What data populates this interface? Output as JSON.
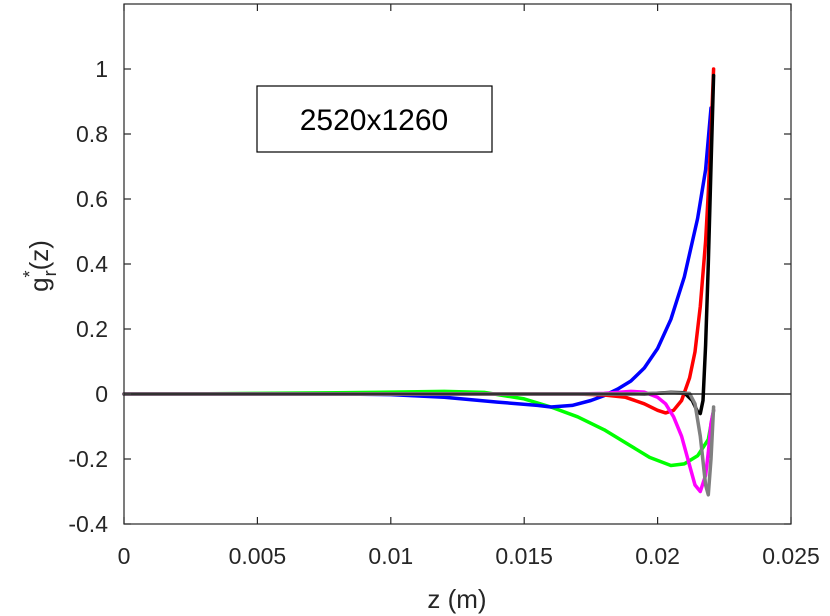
{
  "chart_data": {
    "type": "line",
    "xlabel": "z   (m)",
    "ylabel_main": "g",
    "ylabel_sup": "*",
    "ylabel_sub": "r",
    "ylabel_tail": "(z)",
    "annotation": "2520x1260",
    "xlim": [
      0,
      0.025
    ],
    "ylim": [
      -0.4,
      1.2
    ],
    "xticks": [
      0,
      0.005,
      0.01,
      0.015,
      0.02,
      0.025
    ],
    "xtick_labels": [
      "0",
      "0.005",
      "0.01",
      "0.015",
      "0.02",
      "0.025"
    ],
    "yticks": [
      -0.4,
      -0.2,
      0,
      0.2,
      0.4,
      0.6,
      0.8,
      1
    ],
    "ytick_labels": [
      "-0.4",
      "-0.2",
      "0",
      "0.2",
      "0.4",
      "0.6",
      "0.8",
      "1"
    ],
    "grid": false,
    "legend": "none",
    "reference_line_y": 0,
    "series": [
      {
        "color": "#00ff00",
        "points": [
          [
            0,
            0
          ],
          [
            0.002,
            0
          ],
          [
            0.005,
            0.002
          ],
          [
            0.008,
            0.004
          ],
          [
            0.01,
            0.006
          ],
          [
            0.012,
            0.008
          ],
          [
            0.0135,
            0.005
          ],
          [
            0.015,
            -0.015
          ],
          [
            0.016,
            -0.04
          ],
          [
            0.017,
            -0.07
          ],
          [
            0.018,
            -0.11
          ],
          [
            0.019,
            -0.16
          ],
          [
            0.0197,
            -0.195
          ],
          [
            0.0205,
            -0.22
          ],
          [
            0.021,
            -0.215
          ],
          [
            0.0215,
            -0.19
          ],
          [
            0.0219,
            -0.14
          ],
          [
            0.0221,
            -0.05
          ]
        ]
      },
      {
        "color": "#0000ff",
        "points": [
          [
            0,
            0
          ],
          [
            0.008,
            0
          ],
          [
            0.01,
            -0.002
          ],
          [
            0.012,
            -0.01
          ],
          [
            0.014,
            -0.025
          ],
          [
            0.0155,
            -0.035
          ],
          [
            0.016,
            -0.04
          ],
          [
            0.0168,
            -0.035
          ],
          [
            0.0175,
            -0.02
          ],
          [
            0.018,
            -0.005
          ],
          [
            0.0185,
            0.015
          ],
          [
            0.019,
            0.04
          ],
          [
            0.0195,
            0.08
          ],
          [
            0.02,
            0.14
          ],
          [
            0.0205,
            0.23
          ],
          [
            0.021,
            0.36
          ],
          [
            0.0215,
            0.54
          ],
          [
            0.0218,
            0.69
          ],
          [
            0.022,
            0.88
          ]
        ]
      },
      {
        "color": "#ff0000",
        "points": [
          [
            0,
            0
          ],
          [
            0.017,
            0
          ],
          [
            0.018,
            -0.003
          ],
          [
            0.0188,
            -0.01
          ],
          [
            0.0195,
            -0.03
          ],
          [
            0.02,
            -0.05
          ],
          [
            0.0203,
            -0.058
          ],
          [
            0.0206,
            -0.05
          ],
          [
            0.0209,
            -0.02
          ],
          [
            0.0212,
            0.05
          ],
          [
            0.0214,
            0.13
          ],
          [
            0.0216,
            0.27
          ],
          [
            0.0218,
            0.47
          ],
          [
            0.0219,
            0.62
          ],
          [
            0.022,
            0.8
          ],
          [
            0.0221,
            1.0
          ]
        ]
      },
      {
        "color": "#ff00ff",
        "points": [
          [
            0,
            0
          ],
          [
            0.017,
            0
          ],
          [
            0.018,
            0.002
          ],
          [
            0.019,
            0.008
          ],
          [
            0.0195,
            0.006
          ],
          [
            0.02,
            -0.01
          ],
          [
            0.0203,
            -0.03
          ],
          [
            0.0206,
            -0.07
          ],
          [
            0.0209,
            -0.13
          ],
          [
            0.0212,
            -0.22
          ],
          [
            0.0214,
            -0.28
          ],
          [
            0.0216,
            -0.3
          ],
          [
            0.0218,
            -0.25
          ],
          [
            0.0219,
            -0.18
          ],
          [
            0.022,
            -0.09
          ],
          [
            0.0221,
            -0.05
          ]
        ]
      },
      {
        "color": "#000000",
        "points": [
          [
            0,
            0
          ],
          [
            0.0195,
            0
          ],
          [
            0.0205,
            0.005
          ],
          [
            0.021,
            0.004
          ],
          [
            0.0213,
            -0.02
          ],
          [
            0.0215,
            -0.055
          ],
          [
            0.0216,
            -0.06
          ],
          [
            0.0217,
            -0.02
          ],
          [
            0.0218,
            0.15
          ],
          [
            0.0219,
            0.4
          ],
          [
            0.022,
            0.7
          ],
          [
            0.0221,
            0.98
          ]
        ]
      },
      {
        "color": "#808080",
        "points": [
          [
            0,
            0
          ],
          [
            0.019,
            0
          ],
          [
            0.0205,
            0.004
          ],
          [
            0.0212,
            0.002
          ],
          [
            0.0214,
            -0.03
          ],
          [
            0.0216,
            -0.13
          ],
          [
            0.0218,
            -0.28
          ],
          [
            0.0219,
            -0.31
          ],
          [
            0.022,
            -0.2
          ],
          [
            0.0221,
            -0.04
          ]
        ]
      }
    ]
  }
}
